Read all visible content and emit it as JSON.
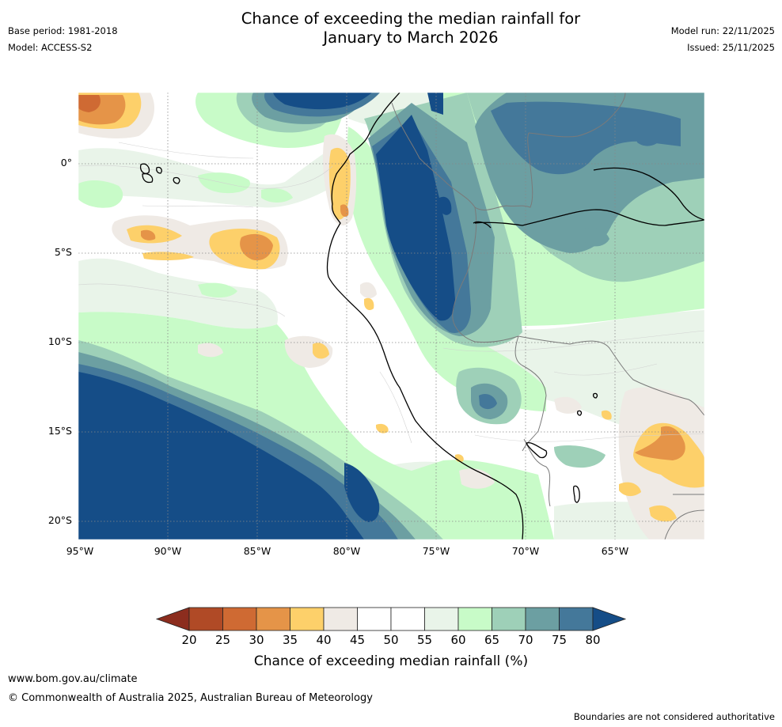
{
  "title": {
    "line1": "Chance of exceeding the median rainfall for",
    "line2": "January to March 2026"
  },
  "meta_left": {
    "base_period": "Base period: 1981-2018",
    "model": "Model: ACCESS-S2"
  },
  "meta_right": {
    "model_run": "Model run: 22/11/2025",
    "issued": "Issued: 25/11/2025"
  },
  "map": {
    "lat_labels": [
      "0°",
      "5°S",
      "10°S",
      "15°S",
      "20°S"
    ],
    "lon_labels": [
      "95°W",
      "90°W",
      "85°W",
      "80°W",
      "75°W",
      "70°W",
      "65°W"
    ]
  },
  "colorbar": {
    "ticks": [
      "20",
      "25",
      "30",
      "35",
      "40",
      "45",
      "50",
      "55",
      "60",
      "65",
      "70",
      "75",
      "80"
    ],
    "title": "Chance of exceeding median rainfall (%)",
    "colors": {
      "below20": "#8c2d1e",
      "c20_25": "#b04a26",
      "c25_30": "#cf6a33",
      "c30_35": "#e59448",
      "c35_40": "#fdd06a",
      "c40_45": "#efeae5",
      "c45_50": "#ffffff",
      "c50_55": "#ffffff",
      "c55_60": "#e9f4e9",
      "c60_65": "#c8fbc8",
      "c65_70": "#9ed0b8",
      "c70_75": "#6c9fa2",
      "c75_80": "#44789a",
      "above80": "#154d87"
    }
  },
  "footer": {
    "website": "www.bom.gov.au/climate",
    "copyright": "© Commonwealth of Australia 2025, Australian Bureau of Meteorology",
    "disclaimer": "Boundaries are not considered authoritative"
  }
}
